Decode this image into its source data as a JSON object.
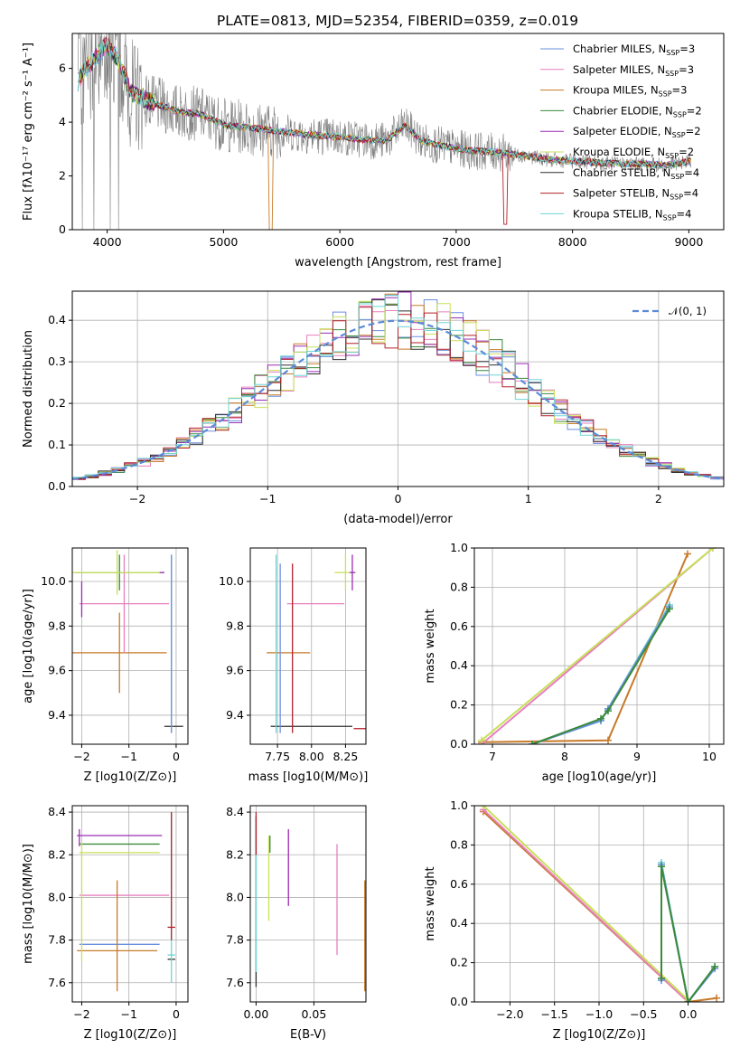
{
  "figure": {
    "title": "PLATE=0813, MJD=52354, FIBERID=0359, z=0.019"
  },
  "colors": {
    "data": "#7f7f7f",
    "models": [
      "#6a8fe0",
      "#e77fbf",
      "#c77a28",
      "#3a8a3a",
      "#9a2db4",
      "#c8e05a",
      "#2f2f2f",
      "#b4202a",
      "#6fd5d5"
    ],
    "gauss": "#5b8bd8"
  },
  "chart_data": [
    {
      "id": "spectrum",
      "type": "line",
      "xlabel": "wavelength [Angstrom, rest frame]",
      "ylabel": "Flux [fλ10⁻¹⁷ erg cm⁻² s⁻¹ A⁻¹]",
      "xlim": [
        3700,
        9300
      ],
      "ylim": [
        0,
        7.3
      ],
      "xticks": [
        4000,
        5000,
        6000,
        7000,
        8000,
        9000
      ],
      "yticks": [
        0,
        2,
        4,
        6
      ],
      "legend": [
        "Chabrier MILES, N_SSP=3",
        "Salpeter MILES, N_SSP=3",
        "Kroupa MILES, N_SSP=3",
        "Chabrier ELODIE, N_SSP=2",
        "Salpeter ELODIE, N_SSP=2",
        "Kroupa ELODIE, N_SSP=2",
        "Chabrier STELIB, N_SSP=4",
        "Salpeter STELIB, N_SSP=4",
        "Kroupa STELIB, N_SSP=4"
      ],
      "legend_placement": "top-right",
      "model_anchor": {
        "x": [
          3750,
          3800,
          3900,
          4000,
          4100,
          4200,
          4400,
          4600,
          4800,
          5000,
          5200,
          5400,
          5600,
          5800,
          6000,
          6200,
          6400,
          6560,
          6700,
          6900,
          7100,
          7300,
          7420,
          7600,
          7800,
          8000,
          8200,
          8400,
          8600,
          8800,
          9020
        ],
        "y": [
          5.5,
          5.9,
          6.4,
          6.9,
          6.3,
          5.1,
          4.7,
          4.4,
          4.3,
          3.9,
          3.8,
          3.7,
          3.6,
          3.5,
          3.45,
          3.35,
          3.3,
          3.9,
          3.3,
          3.1,
          2.95,
          2.9,
          2.85,
          2.75,
          2.6,
          2.55,
          2.5,
          2.45,
          2.45,
          2.4,
          2.55
        ]
      }
    },
    {
      "id": "residuals",
      "type": "line",
      "xlabel": "(data-model)/error",
      "ylabel": "Normed distribution",
      "xlim": [
        -2.5,
        2.5
      ],
      "ylim": [
        0,
        0.47
      ],
      "xticks": [
        -2,
        -1,
        0,
        1,
        2
      ],
      "yticks": [
        0.0,
        0.1,
        0.2,
        0.3,
        0.4
      ],
      "legend": [
        "𝒩(0, 1)"
      ],
      "legend_placement": "top-right",
      "grid": true
    },
    {
      "id": "age-vs-Z",
      "type": "scatter",
      "xlabel": "Z [log10(Z/Z⊙)]",
      "ylabel": "age  [log10(age/yr)]",
      "xlim": [
        -2.2,
        0.25
      ],
      "ylim": [
        9.27,
        10.15
      ],
      "xticks": [
        -2,
        -1,
        0
      ],
      "yticks": [
        9.4,
        9.6,
        9.8,
        10.0
      ],
      "grid": true,
      "points": [
        {
          "x": -1.2,
          "y": 9.68,
          "xerr": 1.0,
          "yerr": 0.18,
          "c": 2
        },
        {
          "x": -1.1,
          "y": 9.9,
          "xerr": 0.95,
          "yerr": 0.22,
          "c": 1
        },
        {
          "x": -1.2,
          "y": 10.04,
          "xerr": 0.95,
          "yerr": 0.08,
          "c": 3
        },
        {
          "x": -1.25,
          "y": 10.04,
          "xerr": 0.95,
          "yerr": 0.1,
          "c": 5
        },
        {
          "x": -0.3,
          "y": 10.04,
          "xerr": 0.05,
          "yerr": 0.0,
          "c": 4
        },
        {
          "x": -0.05,
          "y": 9.35,
          "xerr": 0.2,
          "yerr": 0.0,
          "c": 6
        },
        {
          "x": -0.1,
          "y": 9.72,
          "xerr": 0.0,
          "yerr": 0.4,
          "c": 8
        },
        {
          "x": -0.1,
          "y": 9.72,
          "xerr": 0.0,
          "yerr": 0.4,
          "c": 0
        },
        {
          "x": -2.0,
          "y": 9.92,
          "xerr": 0.0,
          "yerr": 0.08,
          "c": 4
        }
      ]
    },
    {
      "id": "age-vs-mass",
      "type": "scatter",
      "xlabel": "mass [log10(M/M⊙)]",
      "ylabel": "",
      "xlim": [
        7.55,
        8.4
      ],
      "ylim": [
        9.27,
        10.15
      ],
      "xticks": [
        7.75,
        8.0,
        8.25
      ],
      "yticks": [
        9.4,
        9.6,
        9.8,
        10.0
      ],
      "grid": true,
      "points": [
        {
          "x": 7.83,
          "y": 9.68,
          "xerr": 0.16,
          "yerr": 0.0,
          "c": 2
        },
        {
          "x": 8.03,
          "y": 9.9,
          "xerr": 0.21,
          "yerr": 0.0,
          "c": 1
        },
        {
          "x": 8.25,
          "y": 10.04,
          "xerr": 0.08,
          "yerr": 0.08,
          "c": 5
        },
        {
          "x": 8.3,
          "y": 10.04,
          "xerr": 0.02,
          "yerr": 0.08,
          "c": 4
        },
        {
          "x": 8.0,
          "y": 9.35,
          "xerr": 0.3,
          "yerr": 0.0,
          "c": 6
        },
        {
          "x": 8.36,
          "y": 9.34,
          "xerr": 0.05,
          "yerr": 0.0,
          "c": 7
        },
        {
          "x": 7.74,
          "y": 9.72,
          "xerr": 0.0,
          "yerr": 0.4,
          "c": 8
        },
        {
          "x": 7.77,
          "y": 9.7,
          "xerr": 0.0,
          "yerr": 0.38,
          "c": 0
        },
        {
          "x": 7.86,
          "y": 9.7,
          "xerr": 0.0,
          "yerr": 0.38,
          "c": 7
        }
      ]
    },
    {
      "id": "mass-weight-vs-age",
      "type": "line",
      "xlabel": "age  [log10(age/yr)]",
      "ylabel": "mass weight",
      "xlim": [
        6.75,
        10.2
      ],
      "ylim": [
        0,
        1
      ],
      "xticks": [
        7,
        8,
        9,
        10
      ],
      "yticks": [
        0.0,
        0.2,
        0.4,
        0.6,
        0.8,
        1.0
      ],
      "grid": true,
      "series": [
        {
          "c": 2,
          "x": [
            6.85,
            8.6,
            9.7
          ],
          "y": [
            0.01,
            0.02,
            0.97
          ]
        },
        {
          "c": 1,
          "x": [
            6.85,
            10.05
          ],
          "y": [
            0.0,
            1.0
          ]
        },
        {
          "c": 5,
          "x": [
            6.85,
            10.05
          ],
          "y": [
            0.02,
            1.0
          ]
        },
        {
          "c": 8,
          "x": [
            7.55,
            8.5,
            8.6,
            9.45
          ],
          "y": [
            0.0,
            0.12,
            0.18,
            0.71
          ]
        },
        {
          "c": 0,
          "x": [
            7.55,
            8.5,
            8.6,
            9.45
          ],
          "y": [
            0.0,
            0.12,
            0.18,
            0.7
          ]
        },
        {
          "c": 3,
          "x": [
            7.55,
            8.5,
            8.6,
            9.45
          ],
          "y": [
            0.0,
            0.13,
            0.17,
            0.69
          ]
        }
      ]
    },
    {
      "id": "mass-vs-Z",
      "type": "scatter",
      "xlabel": "Z [log10(Z/Z⊙)]",
      "ylabel": "mass [log10(M/M⊙)]",
      "xlim": [
        -2.2,
        0.25
      ],
      "ylim": [
        7.51,
        8.43
      ],
      "xticks": [
        -2,
        -1,
        0
      ],
      "yticks": [
        7.6,
        7.8,
        8.0,
        8.2,
        8.4
      ],
      "grid": true,
      "points": [
        {
          "x": -1.2,
          "y": 8.29,
          "xerr": 0.9,
          "yerr": 0.0,
          "c": 4
        },
        {
          "x": -1.2,
          "y": 8.25,
          "xerr": 0.85,
          "yerr": 0.0,
          "c": 3
        },
        {
          "x": -1.2,
          "y": 8.21,
          "xerr": 0.85,
          "yerr": 0.0,
          "c": 5
        },
        {
          "x": -1.1,
          "y": 8.01,
          "xerr": 0.95,
          "yerr": 0.0,
          "c": 1
        },
        {
          "x": -1.2,
          "y": 7.78,
          "xerr": 0.85,
          "yerr": 0.0,
          "c": 0
        },
        {
          "x": -1.25,
          "y": 7.75,
          "xerr": 0.85,
          "yerr": 0.0,
          "c": 2
        },
        {
          "x": -1.25,
          "y": 7.82,
          "xerr": 0.0,
          "yerr": 0.26,
          "c": 2
        },
        {
          "x": -2.05,
          "y": 8.28,
          "xerr": 0.0,
          "yerr": 0.04,
          "c": 4
        },
        {
          "x": -2.0,
          "y": 7.98,
          "xerr": 0.0,
          "yerr": 0.28,
          "c": 5
        },
        {
          "x": -0.1,
          "y": 7.86,
          "xerr": 0.08,
          "yerr": 0.0,
          "c": 7
        },
        {
          "x": -0.1,
          "y": 7.73,
          "xerr": 0.08,
          "yerr": 0.0,
          "c": 8
        },
        {
          "x": -0.1,
          "y": 7.71,
          "xerr": 0.08,
          "yerr": 0.0,
          "c": 6
        },
        {
          "x": -0.1,
          "y": 8.0,
          "xerr": 0.0,
          "yerr": 0.4,
          "c": 8
        },
        {
          "x": -0.1,
          "y": 8.1,
          "xerr": 0.0,
          "yerr": 0.3,
          "c": 7
        }
      ]
    },
    {
      "id": "mass-vs-EBV",
      "type": "scatter",
      "xlabel": "E(B-V)",
      "ylabel": "",
      "xlim": [
        -0.005,
        0.095
      ],
      "ylim": [
        7.51,
        8.43
      ],
      "xticks": [
        0.0,
        0.05
      ],
      "yticks": [
        7.6,
        7.8,
        8.0,
        8.2,
        8.4
      ],
      "grid": true,
      "points": [
        {
          "x": 0.0,
          "y": 7.98,
          "xerr": 0.0,
          "yerr": 0.4,
          "c": 6
        },
        {
          "x": 0.0,
          "y": 8.0,
          "xerr": 0.0,
          "yerr": 0.35,
          "c": 8
        },
        {
          "x": 0.0,
          "y": 8.3,
          "xerr": 0.0,
          "yerr": 0.1,
          "c": 7
        },
        {
          "x": 0.011,
          "y": 8.09,
          "xerr": 0.0,
          "yerr": 0.2,
          "c": 5
        },
        {
          "x": 0.012,
          "y": 8.25,
          "xerr": 0.0,
          "yerr": 0.04,
          "c": 3
        },
        {
          "x": 0.028,
          "y": 8.14,
          "xerr": 0.0,
          "yerr": 0.18,
          "c": 4
        },
        {
          "x": 0.07,
          "y": 7.99,
          "xerr": 0.0,
          "yerr": 0.26,
          "c": 1
        },
        {
          "x": 0.094,
          "y": 7.82,
          "xerr": 0.0,
          "yerr": 0.26,
          "c": 2
        }
      ]
    },
    {
      "id": "mass-weight-vs-Z",
      "type": "line",
      "xlabel": "Z [log10(Z/Z⊙)]",
      "ylabel": "mass weight",
      "xlim": [
        -2.4,
        0.4
      ],
      "ylim": [
        0,
        1
      ],
      "xticks": [
        -2.0,
        -1.5,
        -1.0,
        -0.5,
        0.0
      ],
      "yticks": [
        0.0,
        0.2,
        0.4,
        0.6,
        0.8,
        1.0
      ],
      "grid": true,
      "series": [
        {
          "c": 2,
          "x": [
            -2.3,
            0.0,
            0.32
          ],
          "y": [
            0.97,
            0.0,
            0.02
          ]
        },
        {
          "c": 1,
          "x": [
            -2.3,
            0.0
          ],
          "y": [
            0.98,
            0.0
          ]
        },
        {
          "c": 5,
          "x": [
            -2.3,
            0.0
          ],
          "y": [
            1.0,
            0.01
          ]
        },
        {
          "c": 8,
          "x": [
            -0.3,
            -0.3,
            0.0,
            0.3
          ],
          "y": [
            0.12,
            0.71,
            0.0,
            0.18
          ]
        },
        {
          "c": 0,
          "x": [
            -0.3,
            -0.3,
            0.0,
            0.3
          ],
          "y": [
            0.11,
            0.7,
            0.0,
            0.17
          ]
        },
        {
          "c": 3,
          "x": [
            -0.3,
            -0.3,
            0.0,
            0.3
          ],
          "y": [
            0.12,
            0.69,
            0.0,
            0.18
          ]
        }
      ]
    }
  ]
}
